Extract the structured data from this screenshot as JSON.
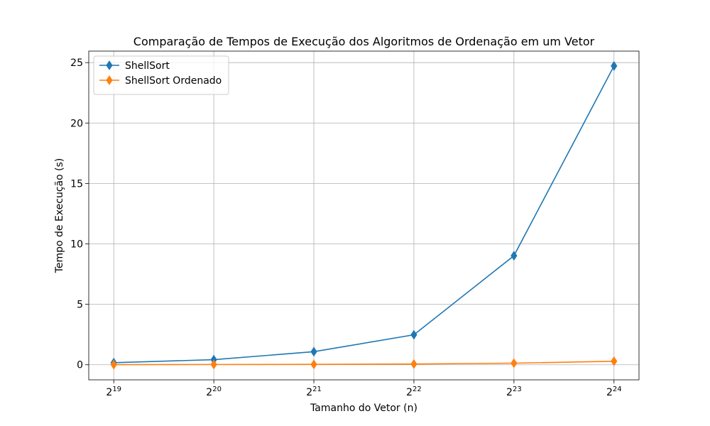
{
  "chart_data": {
    "type": "line",
    "title": "Comparação de Tempos de Execução dos Algoritmos de Ordenação em um Vetor",
    "xlabel": "Tamanho do Vetor (n)",
    "ylabel": "Tempo de Execução (s)",
    "x_scale": "log2",
    "x": [
      524288,
      1048576,
      2097152,
      4194304,
      8388608,
      16777216
    ],
    "x_tick_labels": [
      {
        "base": "2",
        "exp": "19"
      },
      {
        "base": "2",
        "exp": "20"
      },
      {
        "base": "2",
        "exp": "21"
      },
      {
        "base": "2",
        "exp": "22"
      },
      {
        "base": "2",
        "exp": "23"
      },
      {
        "base": "2",
        "exp": "24"
      }
    ],
    "y_ticks": [
      0,
      5,
      10,
      15,
      20,
      25
    ],
    "ylim": [
      -1.25,
      25.95
    ],
    "grid": true,
    "legend_position": "top-left",
    "series": [
      {
        "name": "ShellSort",
        "color": "#1f77b4",
        "marker": "thin_diamond",
        "values": [
          0.17,
          0.42,
          1.08,
          2.48,
          9.02,
          24.72
        ]
      },
      {
        "name": "ShellSort Ordenado",
        "color": "#ff7f0e",
        "marker": "thin_diamond",
        "values": [
          0.01,
          0.02,
          0.03,
          0.06,
          0.13,
          0.29
        ]
      }
    ]
  }
}
